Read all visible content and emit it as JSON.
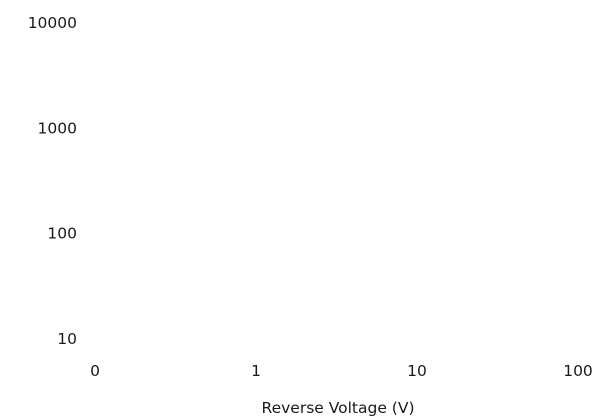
{
  "chart_data": {
    "type": "line",
    "title": "",
    "xlabel": "Reverse Voltage (V)",
    "ylabel": "",
    "x_scale": "log",
    "y_scale": "log",
    "x_ticks": [
      "0",
      "1",
      "10",
      "100"
    ],
    "y_ticks": [
      "10",
      "100",
      "1000",
      "10000"
    ],
    "xlim": [
      0.1,
      100
    ],
    "ylim": [
      10,
      10000
    ],
    "grid": false,
    "series": []
  }
}
